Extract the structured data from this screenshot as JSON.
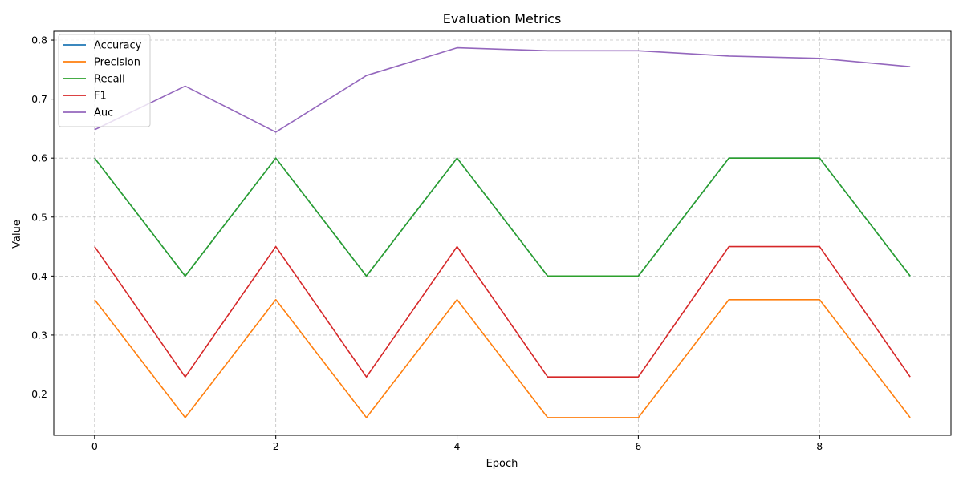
{
  "chart_data": {
    "type": "line",
    "title": "Evaluation Metrics",
    "xlabel": "Epoch",
    "ylabel": "Value",
    "x": [
      0,
      1,
      2,
      3,
      4,
      5,
      6,
      7,
      8,
      9
    ],
    "xlim": [
      -0.45,
      9.45
    ],
    "ylim": [
      0.13,
      0.815
    ],
    "xticks": [
      0,
      2,
      4,
      6,
      8
    ],
    "yticks": [
      0.2,
      0.3,
      0.4,
      0.5,
      0.6,
      0.7,
      0.8
    ],
    "grid": true,
    "legend_position": "top-left",
    "series": [
      {
        "name": "Accuracy",
        "color": "#1f77b4",
        "values": [
          0.6,
          0.4,
          0.6,
          0.4,
          0.6,
          0.4,
          0.4,
          0.6,
          0.6,
          0.4
        ]
      },
      {
        "name": "Precision",
        "color": "#ff7f0e",
        "values": [
          0.36,
          0.16,
          0.36,
          0.16,
          0.36,
          0.16,
          0.16,
          0.36,
          0.36,
          0.16
        ]
      },
      {
        "name": "Recall",
        "color": "#2ca02c",
        "values": [
          0.6,
          0.4,
          0.6,
          0.4,
          0.6,
          0.4,
          0.4,
          0.6,
          0.6,
          0.4
        ]
      },
      {
        "name": "F1",
        "color": "#d62728",
        "values": [
          0.45,
          0.229,
          0.45,
          0.229,
          0.45,
          0.229,
          0.229,
          0.45,
          0.45,
          0.229
        ]
      },
      {
        "name": "Auc",
        "color": "#9467bd",
        "values": [
          0.648,
          0.722,
          0.644,
          0.74,
          0.787,
          0.782,
          0.782,
          0.773,
          0.769,
          0.755
        ]
      }
    ]
  }
}
